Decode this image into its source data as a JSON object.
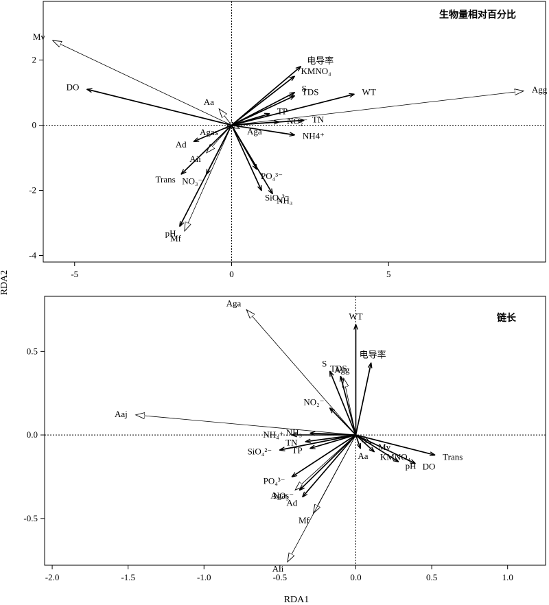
{
  "figure": {
    "y_axis_label": "RDA2",
    "x_axis_label": "RDA1"
  },
  "chart_data": [
    {
      "type": "biplot",
      "title": "生物量相对百分比",
      "xlim": [
        -6.0,
        10.0
      ],
      "ylim": [
        -4.2,
        3.8
      ],
      "xticks": [
        -5,
        0,
        5
      ],
      "yticks": [
        -4,
        -2,
        0,
        2
      ],
      "zero_lines": true,
      "environment_vectors": [
        {
          "name": "电导率",
          "x": 2.2,
          "y": 1.8
        },
        {
          "name": "KMNO₄",
          "x": 2.0,
          "y": 1.5
        },
        {
          "name": "S",
          "x": 2.0,
          "y": 1.0
        },
        {
          "name": "TDS",
          "x": 2.0,
          "y": 0.9
        },
        {
          "name": "WT",
          "x": 3.9,
          "y": 0.95
        },
        {
          "name": "TP",
          "x": 1.2,
          "y": 0.35
        },
        {
          "name": "NO₂⁻",
          "x": 1.5,
          "y": 0.1
        },
        {
          "name": "TN",
          "x": 2.3,
          "y": 0.15
        },
        {
          "name": "NH4⁺",
          "x": 2.0,
          "y": -0.3
        },
        {
          "name": "PO₄³⁻",
          "x": 0.8,
          "y": -1.35
        },
        {
          "name": "SiO₄²⁻",
          "x": 0.95,
          "y": -2.0
        },
        {
          "name": "NH₃",
          "x": 1.3,
          "y": -2.1
        },
        {
          "name": "NO₃⁻",
          "x": -0.8,
          "y": -1.5
        },
        {
          "name": "DO",
          "x": -4.6,
          "y": 1.1
        },
        {
          "name": "Ad",
          "x": -1.2,
          "y": -0.5
        },
        {
          "name": "Trans",
          "x": -1.6,
          "y": -1.5
        },
        {
          "name": "pH",
          "x": -1.65,
          "y": -3.1
        }
      ],
      "species_vectors": [
        {
          "name": "Agg",
          "x": 9.3,
          "y": 1.05
        },
        {
          "name": "Mv",
          "x": -5.7,
          "y": 2.6
        },
        {
          "name": "Aa",
          "x": -0.4,
          "y": 0.5
        },
        {
          "name": "Aii",
          "x": -0.8,
          "y": -0.85
        },
        {
          "name": "Mf",
          "x": -1.5,
          "y": -3.25
        },
        {
          "name": "Aga",
          "x": 0.25,
          "y": -0.1
        },
        {
          "name": "Agas",
          "x": -0.2,
          "y": -0.1
        }
      ]
    },
    {
      "type": "biplot",
      "title": "链长",
      "xlim": [
        -2.05,
        1.25
      ],
      "ylim": [
        -0.78,
        0.83
      ],
      "xticks": [
        -2.0,
        -1.5,
        -1.0,
        -0.5,
        0.0,
        0.5,
        1.0
      ],
      "yticks": [
        -0.5,
        0.0,
        0.5
      ],
      "zero_lines": true,
      "environment_vectors": [
        {
          "name": "WT",
          "x": 0.0,
          "y": 0.66
        },
        {
          "name": "电导率",
          "x": 0.1,
          "y": 0.43
        },
        {
          "name": "S",
          "x": -0.17,
          "y": 0.38
        },
        {
          "name": "TDS",
          "x": -0.1,
          "y": 0.35
        },
        {
          "name": "NO₂⁻",
          "x": -0.17,
          "y": 0.16
        },
        {
          "name": "NH₃",
          "x": -0.3,
          "y": 0.01
        },
        {
          "name": "NH₄⁺",
          "x": -0.42,
          "y": 0.0
        },
        {
          "name": "TN",
          "x": -0.33,
          "y": -0.04
        },
        {
          "name": "SiO₄²⁻",
          "x": -0.5,
          "y": -0.09
        },
        {
          "name": "TP",
          "x": -0.3,
          "y": -0.08
        },
        {
          "name": "PO₄³⁻",
          "x": -0.42,
          "y": -0.25
        },
        {
          "name": "NO₃⁻",
          "x": -0.37,
          "y": -0.33
        },
        {
          "name": "Ad",
          "x": -0.35,
          "y": -0.37
        },
        {
          "name": "Aa",
          "x": 0.03,
          "y": -0.08
        },
        {
          "name": "KMNO₄",
          "x": 0.12,
          "y": -0.1
        },
        {
          "name": "pH",
          "x": 0.28,
          "y": -0.16
        },
        {
          "name": "DO",
          "x": 0.39,
          "y": -0.17
        },
        {
          "name": "Trans",
          "x": 0.52,
          "y": -0.12
        }
      ],
      "species_vectors": [
        {
          "name": "Aga",
          "x": -0.72,
          "y": 0.75
        },
        {
          "name": "Aaj",
          "x": -1.45,
          "y": 0.12
        },
        {
          "name": "Agg",
          "x": -0.08,
          "y": 0.34
        },
        {
          "name": "Mv",
          "x": 0.1,
          "y": -0.05
        },
        {
          "name": "Agas",
          "x": -0.4,
          "y": -0.33
        },
        {
          "name": "Mf",
          "x": -0.28,
          "y": -0.47
        },
        {
          "name": "Aii",
          "x": -0.45,
          "y": -0.76
        }
      ]
    }
  ]
}
